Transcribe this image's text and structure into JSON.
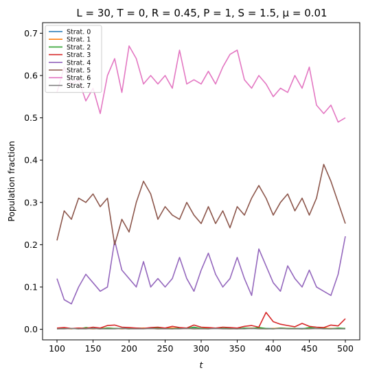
{
  "chart_data": {
    "type": "line",
    "title": "L = 30, T = 0, R = 0.45, P = 1, S = 1.5, μ = 0.01",
    "xlabel": "t",
    "ylabel": "Population fraction",
    "xlim": [
      80,
      520
    ],
    "ylim": [
      -0.025,
      0.725
    ],
    "xticks": [
      "100",
      "150",
      "200",
      "250",
      "300",
      "350",
      "400",
      "450",
      "500"
    ],
    "yticks": [
      "0.0",
      "0.1",
      "0.2",
      "0.3",
      "0.4",
      "0.5",
      "0.6",
      "0.7"
    ],
    "grid": false,
    "legend_position": "top-left",
    "x": [
      100,
      110,
      120,
      130,
      140,
      150,
      160,
      170,
      180,
      190,
      200,
      210,
      220,
      230,
      240,
      250,
      260,
      270,
      280,
      290,
      300,
      310,
      320,
      330,
      340,
      350,
      360,
      370,
      380,
      390,
      400,
      410,
      420,
      430,
      440,
      450,
      460,
      470,
      480,
      490,
      500
    ],
    "series": [
      {
        "name": "Strat. 0",
        "color": "#1f77b4",
        "values": [
          0.002,
          0.002,
          0.002,
          0.002,
          0.002,
          0.002,
          0.002,
          0.002,
          0.002,
          0.002,
          0.002,
          0.002,
          0.002,
          0.002,
          0.002,
          0.002,
          0.002,
          0.002,
          0.002,
          0.002,
          0.002,
          0.002,
          0.002,
          0.002,
          0.002,
          0.002,
          0.002,
          0.002,
          0.002,
          0.002,
          0.002,
          0.002,
          0.002,
          0.002,
          0.002,
          0.002,
          0.002,
          0.002,
          0.002,
          0.002,
          0.002
        ]
      },
      {
        "name": "Strat. 1",
        "color": "#ff7f0e",
        "values": [
          0.001,
          0.002,
          0.001,
          0.003,
          0.002,
          0.001,
          0.002,
          0.003,
          0.002,
          0.001,
          0.002,
          0.002,
          0.003,
          0.002,
          0.001,
          0.002,
          0.003,
          0.002,
          0.002,
          0.001,
          0.002,
          0.002,
          0.003,
          0.002,
          0.001,
          0.002,
          0.002,
          0.003,
          0.002,
          0.001,
          0.002,
          0.003,
          0.002,
          0.002,
          0.001,
          0.002,
          0.002,
          0.003,
          0.002,
          0.002,
          0.002
        ]
      },
      {
        "name": "Strat. 2",
        "color": "#2ca02c",
        "values": [
          0.001,
          0.003,
          0.002,
          0.001,
          0.004,
          0.002,
          0.001,
          0.003,
          0.002,
          0.002,
          0.001,
          0.003,
          0.002,
          0.002,
          0.004,
          0.002,
          0.001,
          0.003,
          0.002,
          0.005,
          0.002,
          0.001,
          0.003,
          0.002,
          0.002,
          0.001,
          0.003,
          0.002,
          0.004,
          0.002,
          0.001,
          0.003,
          0.002,
          0.002,
          0.001,
          0.004,
          0.002,
          0.002,
          0.001,
          0.003,
          0.002
        ]
      },
      {
        "name": "Strat. 3",
        "color": "#d62728",
        "values": [
          0.003,
          0.004,
          0.002,
          0.003,
          0.002,
          0.005,
          0.003,
          0.009,
          0.01,
          0.005,
          0.004,
          0.003,
          0.002,
          0.004,
          0.005,
          0.003,
          0.007,
          0.004,
          0.003,
          0.01,
          0.005,
          0.004,
          0.003,
          0.005,
          0.004,
          0.003,
          0.007,
          0.009,
          0.005,
          0.04,
          0.018,
          0.012,
          0.009,
          0.006,
          0.014,
          0.007,
          0.005,
          0.004,
          0.01,
          0.008,
          0.025
        ]
      },
      {
        "name": "Strat. 4",
        "color": "#9467bd",
        "values": [
          0.12,
          0.07,
          0.06,
          0.1,
          0.13,
          0.11,
          0.09,
          0.1,
          0.21,
          0.14,
          0.12,
          0.1,
          0.16,
          0.1,
          0.12,
          0.1,
          0.12,
          0.17,
          0.12,
          0.09,
          0.14,
          0.18,
          0.13,
          0.1,
          0.12,
          0.17,
          0.12,
          0.08,
          0.19,
          0.15,
          0.11,
          0.09,
          0.15,
          0.12,
          0.1,
          0.14,
          0.1,
          0.09,
          0.08,
          0.13,
          0.22
        ]
      },
      {
        "name": "Strat. 5",
        "color": "#8c564b",
        "values": [
          0.21,
          0.28,
          0.26,
          0.31,
          0.3,
          0.32,
          0.29,
          0.31,
          0.2,
          0.26,
          0.23,
          0.3,
          0.35,
          0.32,
          0.26,
          0.29,
          0.27,
          0.26,
          0.3,
          0.27,
          0.25,
          0.29,
          0.25,
          0.28,
          0.24,
          0.29,
          0.27,
          0.31,
          0.34,
          0.31,
          0.27,
          0.3,
          0.32,
          0.28,
          0.31,
          0.27,
          0.31,
          0.39,
          0.35,
          0.3,
          0.25
        ]
      },
      {
        "name": "Strat. 6",
        "color": "#e377c2",
        "values": [
          0.56,
          0.62,
          0.58,
          0.59,
          0.54,
          0.57,
          0.51,
          0.6,
          0.64,
          0.56,
          0.67,
          0.64,
          0.58,
          0.6,
          0.58,
          0.6,
          0.57,
          0.66,
          0.58,
          0.59,
          0.58,
          0.61,
          0.58,
          0.62,
          0.65,
          0.66,
          0.59,
          0.57,
          0.6,
          0.58,
          0.55,
          0.57,
          0.56,
          0.6,
          0.57,
          0.62,
          0.53,
          0.51,
          0.53,
          0.49,
          0.5
        ]
      },
      {
        "name": "Strat. 7",
        "color": "#7f7f7f",
        "values": [
          0.001,
          0.001,
          0.002,
          0.001,
          0.001,
          0.002,
          0.001,
          0.001,
          0.001,
          0.002,
          0.001,
          0.001,
          0.001,
          0.002,
          0.001,
          0.001,
          0.001,
          0.001,
          0.002,
          0.001,
          0.001,
          0.001,
          0.002,
          0.001,
          0.001,
          0.001,
          0.001,
          0.002,
          0.001,
          0.001,
          0.001,
          0.002,
          0.001,
          0.001,
          0.001,
          0.001,
          0.002,
          0.001,
          0.001,
          0.001,
          0.001
        ]
      }
    ]
  }
}
